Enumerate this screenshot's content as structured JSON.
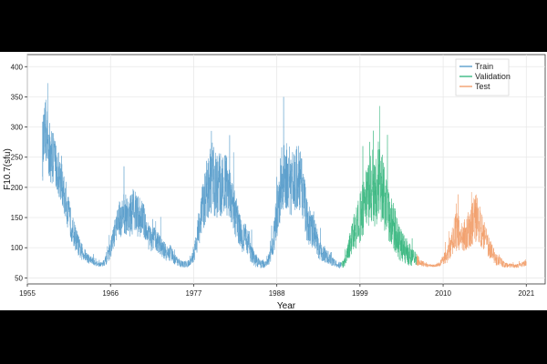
{
  "chart_data": {
    "type": "line",
    "title": "",
    "xlabel": "Year",
    "ylabel": "F10.7(sfu)",
    "xlim": [
      1955,
      2023.5
    ],
    "ylim": [
      40,
      420
    ],
    "x_ticks": [
      1955,
      1966,
      1977,
      1988,
      1999,
      2010,
      2021
    ],
    "y_ticks": [
      50,
      100,
      150,
      200,
      250,
      300,
      350,
      400
    ],
    "grid": true,
    "legend": "top-right",
    "series": [
      {
        "name": "Train",
        "color": "#5b9fcc",
        "x": [
          1957.0,
          1957.5,
          1958.0,
          1958.5,
          1959.0,
          1959.5,
          1960.0,
          1960.5,
          1961.0,
          1961.5,
          1962.0,
          1962.5,
          1963.0,
          1963.5,
          1964.0,
          1964.5,
          1965.0,
          1965.5,
          1966.0,
          1966.5,
          1967.0,
          1967.5,
          1968.0,
          1968.5,
          1969.0,
          1969.5,
          1970.0,
          1970.5,
          1971.0,
          1971.5,
          1972.0,
          1972.5,
          1973.0,
          1973.5,
          1974.0,
          1974.5,
          1975.0,
          1975.5,
          1976.0,
          1976.5,
          1977.0,
          1977.5,
          1978.0,
          1978.5,
          1979.0,
          1979.5,
          1980.0,
          1980.5,
          1981.0,
          1981.5,
          1982.0,
          1982.5,
          1983.0,
          1983.5,
          1984.0,
          1984.5,
          1985.0,
          1985.5,
          1986.0,
          1986.5,
          1987.0,
          1987.5,
          1988.0,
          1988.5,
          1989.0,
          1989.5,
          1990.0,
          1990.5,
          1991.0,
          1991.5,
          1992.0,
          1992.5,
          1993.0,
          1993.5,
          1994.0,
          1994.5,
          1995.0,
          1995.5,
          1996.0,
          1996.5
        ],
        "values": [
          255,
          290,
          250,
          245,
          225,
          205,
          175,
          150,
          125,
          110,
          95,
          88,
          82,
          78,
          75,
          72,
          74,
          80,
          95,
          120,
          140,
          150,
          152,
          148,
          155,
          150,
          148,
          140,
          118,
          110,
          112,
          105,
          95,
          88,
          90,
          80,
          75,
          72,
          72,
          74,
          85,
          115,
          155,
          180,
          200,
          210,
          195,
          200,
          205,
          190,
          170,
          150,
          130,
          110,
          115,
          95,
          80,
          75,
          72,
          72,
          80,
          105,
          150,
          195,
          215,
          210,
          200,
          205,
          210,
          190,
          140,
          130,
          120,
          100,
          88,
          85,
          80,
          75,
          72,
          70
        ],
        "spread": [
          75,
          80,
          70,
          60,
          55,
          50,
          45,
          40,
          35,
          28,
          22,
          16,
          12,
          10,
          8,
          6,
          8,
          12,
          20,
          30,
          42,
          50,
          50,
          48,
          55,
          50,
          48,
          40,
          35,
          30,
          30,
          26,
          22,
          18,
          20,
          14,
          10,
          8,
          8,
          10,
          15,
          35,
          65,
          75,
          80,
          85,
          75,
          80,
          80,
          70,
          65,
          55,
          45,
          35,
          38,
          28,
          18,
          12,
          10,
          8,
          14,
          30,
          60,
          75,
          85,
          85,
          75,
          80,
          80,
          70,
          50,
          45,
          40,
          30,
          20,
          18,
          14,
          10,
          8,
          8
        ]
      },
      {
        "name": "Validation",
        "color": "#3cb882",
        "x": [
          1996.5,
          1997.0,
          1997.5,
          1998.0,
          1998.5,
          1999.0,
          1999.5,
          2000.0,
          2000.5,
          2001.0,
          2001.5,
          2002.0,
          2002.5,
          2003.0,
          2003.5,
          2004.0,
          2004.5,
          2005.0,
          2005.5,
          2006.0,
          2006.5
        ],
        "values": [
          70,
          75,
          95,
          115,
          130,
          145,
          165,
          185,
          190,
          180,
          200,
          185,
          165,
          140,
          130,
          110,
          100,
          95,
          88,
          82,
          80
        ],
        "spread": [
          8,
          10,
          25,
          40,
          50,
          60,
          70,
          80,
          85,
          80,
          90,
          80,
          70,
          60,
          55,
          45,
          40,
          35,
          28,
          20,
          15
        ]
      },
      {
        "name": "Test",
        "color": "#f2a06d",
        "x": [
          2006.5,
          2007.0,
          2007.5,
          2008.0,
          2008.5,
          2009.0,
          2009.5,
          2010.0,
          2010.5,
          2011.0,
          2011.5,
          2012.0,
          2012.5,
          2013.0,
          2013.5,
          2014.0,
          2014.5,
          2015.0,
          2015.5,
          2016.0,
          2016.5,
          2017.0,
          2017.5,
          2018.0,
          2018.5,
          2019.0,
          2019.5,
          2020.0,
          2020.5,
          2021.0
        ],
        "values": [
          80,
          75,
          72,
          70,
          70,
          70,
          72,
          80,
          85,
          100,
          120,
          125,
          115,
          120,
          125,
          140,
          150,
          125,
          115,
          100,
          90,
          80,
          78,
          72,
          70,
          70,
          69,
          70,
          72,
          74
        ],
        "spread": [
          15,
          8,
          6,
          4,
          3,
          3,
          5,
          12,
          18,
          30,
          45,
          45,
          35,
          40,
          40,
          55,
          60,
          45,
          35,
          25,
          20,
          15,
          14,
          8,
          6,
          5,
          4,
          5,
          6,
          8
        ]
      }
    ]
  }
}
